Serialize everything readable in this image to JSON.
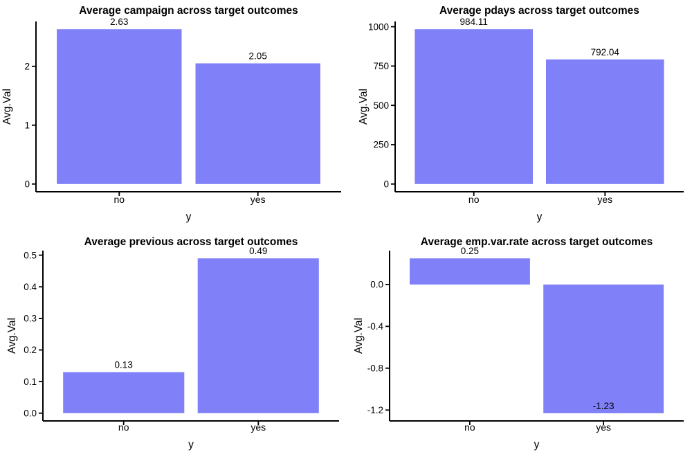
{
  "colors": {
    "bar": "#8080F8",
    "axis": "#000000",
    "text": "#000000",
    "background": "#FFFFFF"
  },
  "chart_data": [
    {
      "type": "bar",
      "title": "Average campaign across target outcomes",
      "categories": [
        "no",
        "yes"
      ],
      "values": [
        2.63,
        2.05
      ],
      "value_labels": [
        "2.63",
        "2.05"
      ],
      "xlabel": "y",
      "ylabel": "Avg.Val",
      "ytick_values": [
        0,
        1,
        2
      ],
      "ytick_labels": [
        "0",
        "1",
        "2"
      ],
      "ylim": [
        0,
        2.63
      ],
      "grid": false,
      "legend": "none",
      "bar_color": "#8080F8"
    },
    {
      "type": "bar",
      "title": "Average pdays across target outcomes",
      "categories": [
        "no",
        "yes"
      ],
      "values": [
        984.11,
        792.04
      ],
      "value_labels": [
        "984.11",
        "792.04"
      ],
      "xlabel": "y",
      "ylabel": "Avg.Val",
      "ytick_values": [
        0,
        250,
        500,
        750,
        1000
      ],
      "ytick_labels": [
        "0",
        "250",
        "500",
        "750",
        "1000"
      ],
      "ylim": [
        0,
        984.11
      ],
      "grid": false,
      "legend": "none",
      "bar_color": "#8080F8"
    },
    {
      "type": "bar",
      "title": "Average previous across target outcomes",
      "categories": [
        "no",
        "yes"
      ],
      "values": [
        0.13,
        0.49
      ],
      "value_labels": [
        "0.13",
        "0.49"
      ],
      "xlabel": "y",
      "ylabel": "Avg.Val",
      "ytick_values": [
        0,
        0.1,
        0.2,
        0.3,
        0.4,
        0.5
      ],
      "ytick_labels": [
        "0.0",
        "0.1",
        "0.2",
        "0.3",
        "0.4",
        "0.5"
      ],
      "ylim": [
        0,
        0.49
      ],
      "grid": false,
      "legend": "none",
      "bar_color": "#8080F8"
    },
    {
      "type": "bar",
      "title": "Average emp.var.rate across target outcomes",
      "categories": [
        "no",
        "yes"
      ],
      "values": [
        0.25,
        -1.23
      ],
      "value_labels": [
        "0.25",
        "-1.23"
      ],
      "xlabel": "y",
      "ylabel": "Avg.Val",
      "ytick_values": [
        0,
        -0.4,
        -0.8,
        -1.2
      ],
      "ytick_labels": [
        "0.0",
        "-0.4",
        "-0.8",
        "-1.2"
      ],
      "ylim": [
        -1.23,
        0.25
      ],
      "grid": false,
      "legend": "none",
      "bar_color": "#8080F8"
    }
  ]
}
